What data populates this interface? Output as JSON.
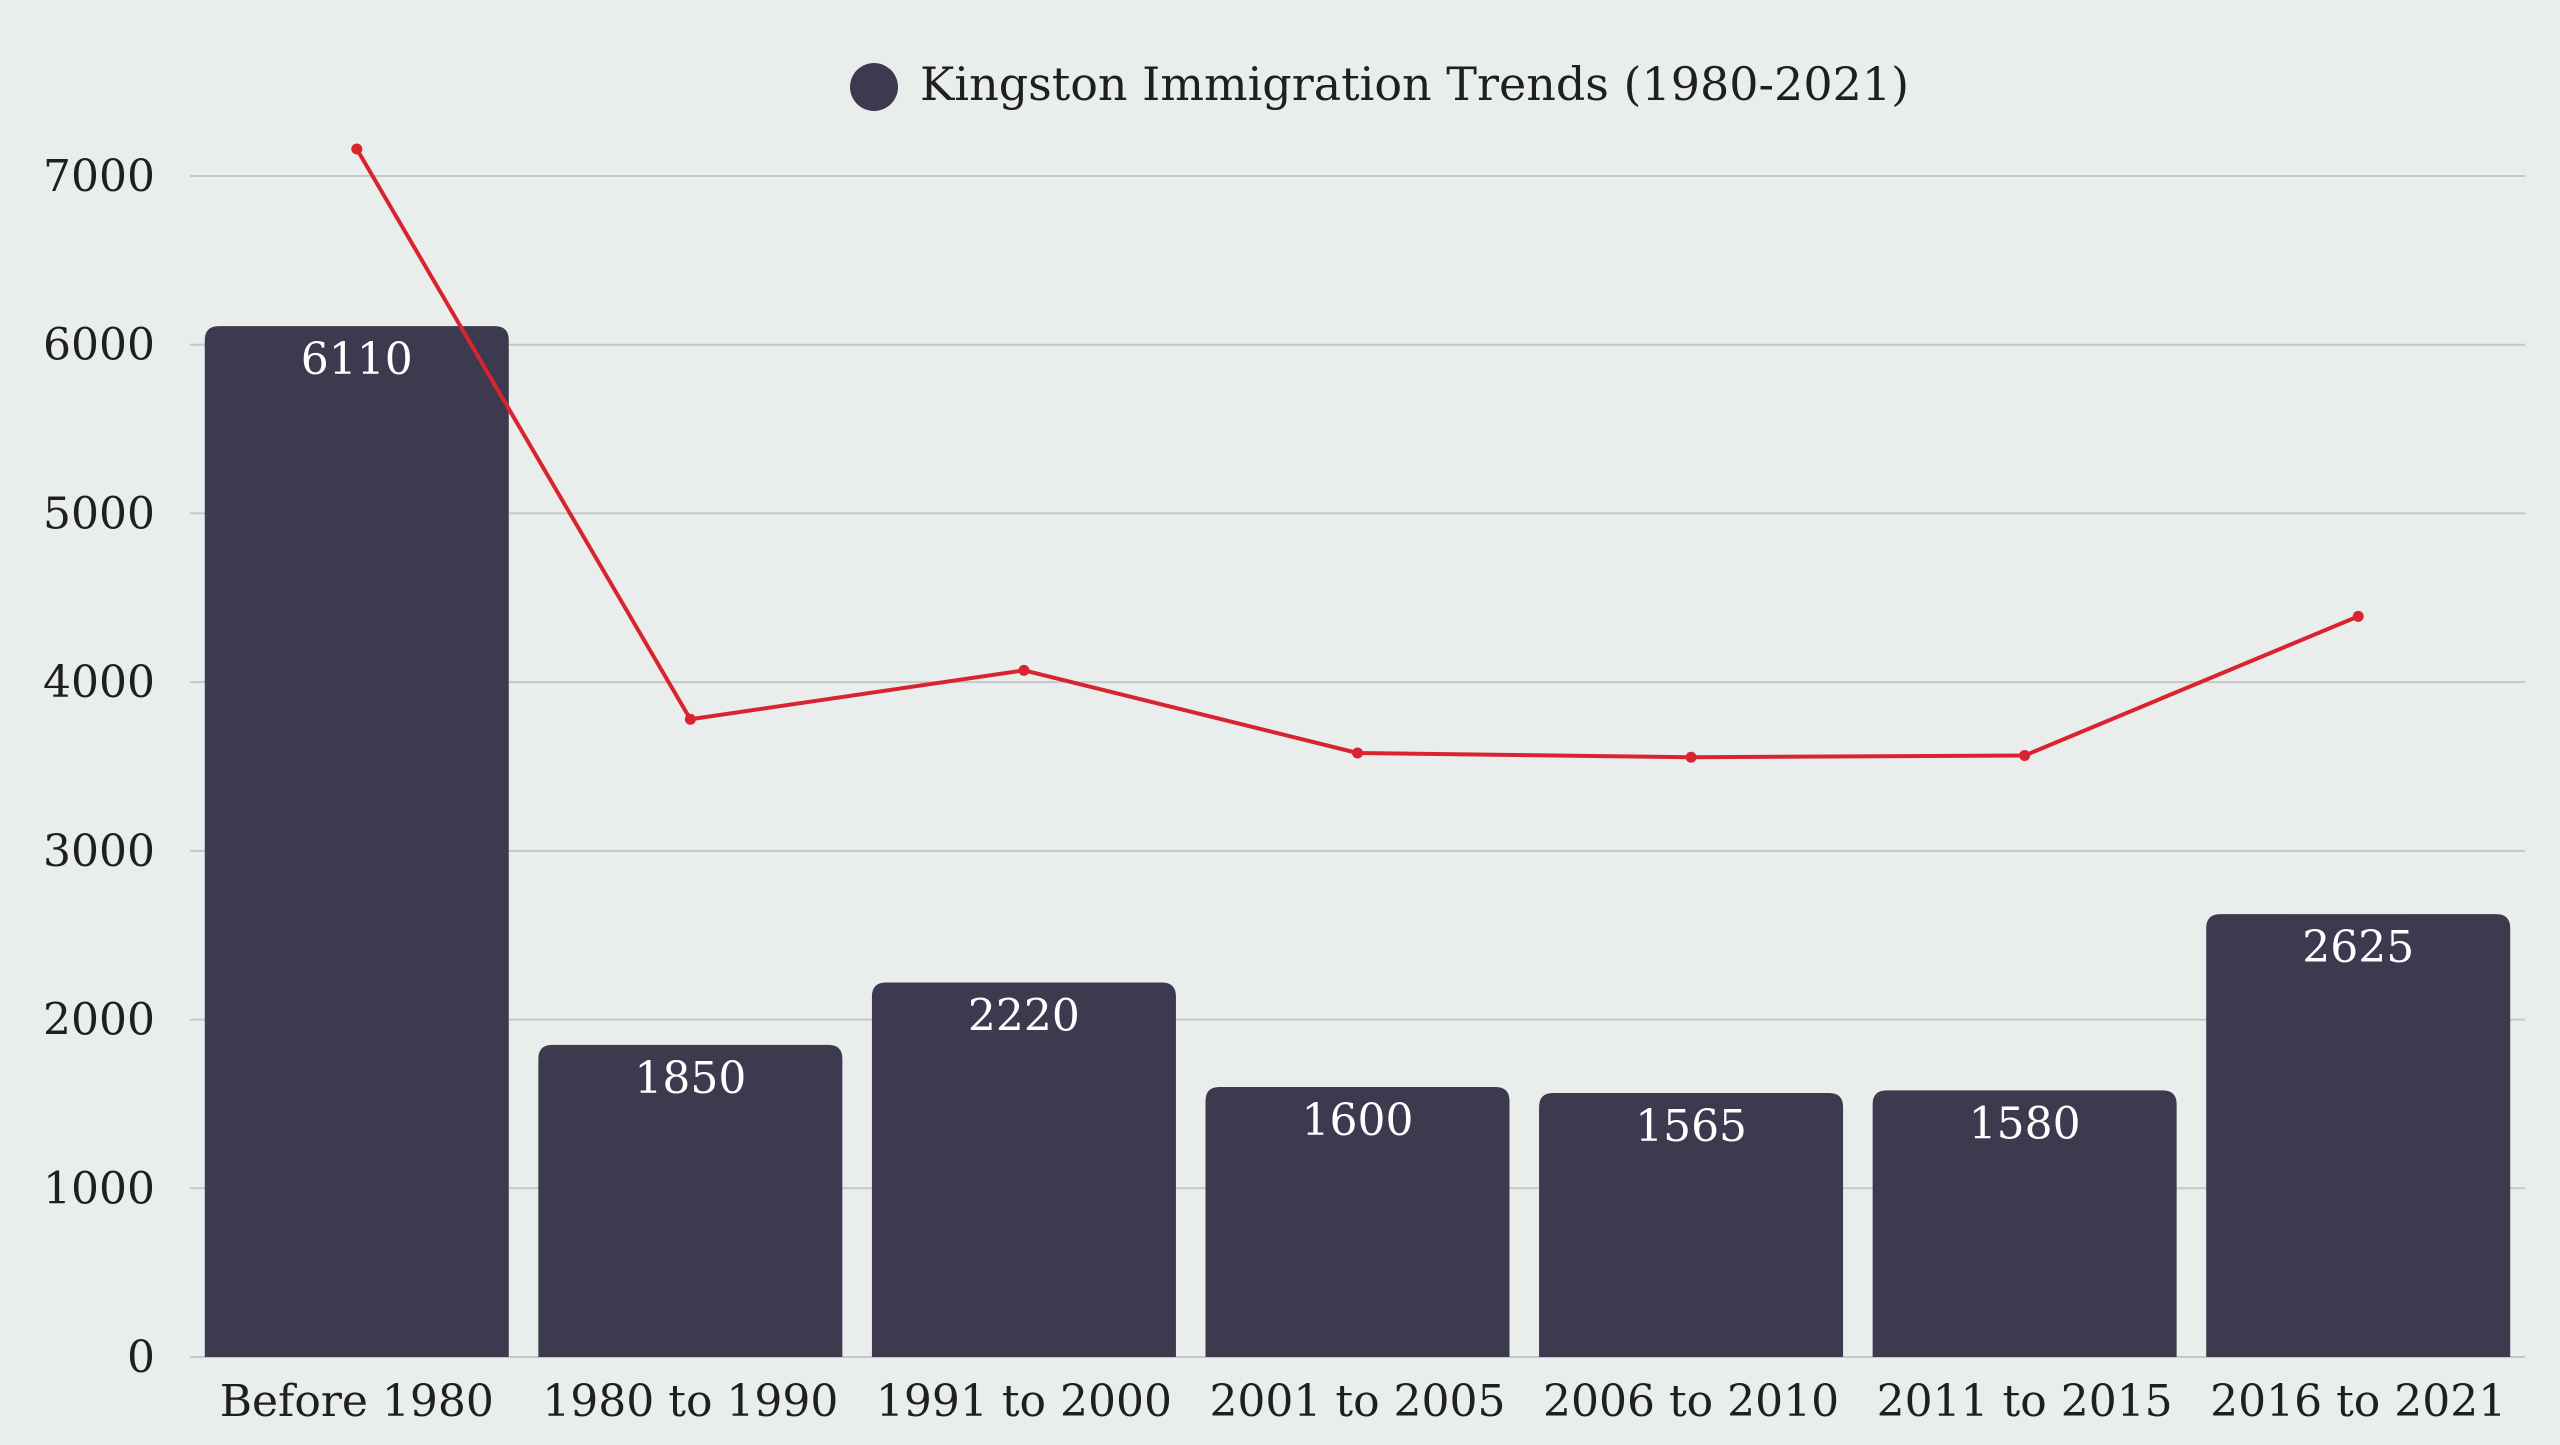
{
  "chart_data": {
    "type": "bar",
    "title": "",
    "xlabel": "",
    "ylabel": "",
    "categories": [
      "Before 1980",
      "1980 to 1990",
      "1991 to 2000",
      "2001 to 2005",
      "2006 to 2010",
      "2011 to 2015",
      "2016 to 2021"
    ],
    "series": [
      {
        "name": "Kingston Immigration Trends (1980-2021)",
        "type": "bar",
        "values": [
          6110,
          1850,
          2220,
          1600,
          1565,
          1580,
          2625
        ],
        "color": "#3d394f",
        "show_data_labels": true
      },
      {
        "name": "",
        "type": "line",
        "values": [
          7160,
          3780,
          4070,
          3580,
          3555,
          3565,
          4390
        ],
        "color": "#d9242f",
        "show_data_labels": false
      }
    ],
    "ylim": [
      0,
      7000
    ],
    "yticks": [
      0,
      1000,
      2000,
      3000,
      4000,
      5000,
      6000,
      7000
    ],
    "grid": true,
    "legend": "top-center",
    "legend_entries": [
      "Kingston Immigration Trends (1980-2021)"
    ]
  }
}
